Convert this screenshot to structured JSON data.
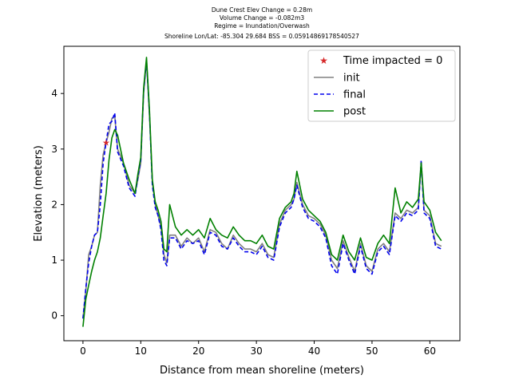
{
  "chart_data": {
    "type": "line",
    "title_lines": [
      "Dune Crest Elev Change = 0.28m",
      "Volume Change = -0.082m3",
      "Regime = Inundation/Overwash",
      "Shoreline Lon/Lat: -85.304 29.684   BSS = 0.05914869178540527"
    ],
    "xlabel": "Distance from mean shoreline (meters)",
    "ylabel": "Elevation (meters)",
    "xlim": [
      -3.3,
      65.2
    ],
    "ylim": [
      -0.45,
      4.85
    ],
    "xticks": [
      0,
      10,
      20,
      30,
      40,
      50,
      60
    ],
    "yticks": [
      0,
      1,
      2,
      3,
      4
    ],
    "legend_position": "top-right",
    "marker": {
      "name": "Time impacted = 0",
      "x": 4.0,
      "y": 3.12,
      "color": "#d62728"
    },
    "series": [
      {
        "name": "init",
        "color": "#808080",
        "style": "solid",
        "x": [
          0,
          0.5,
          1,
          1.5,
          2,
          2.5,
          3,
          3.5,
          4,
          4.5,
          5,
          5.5,
          6,
          7,
          8,
          9,
          9.5,
          10,
          10.5,
          11,
          11.5,
          12,
          12.5,
          13,
          13.5,
          14,
          14.5,
          15,
          16,
          17,
          18,
          19,
          20,
          21,
          22,
          23,
          24,
          25,
          26,
          27,
          28,
          29,
          30,
          31,
          32,
          33,
          34,
          35,
          36,
          36.5,
          37,
          38,
          39,
          40,
          41,
          42,
          43,
          44,
          45,
          46,
          47,
          48,
          49,
          50,
          51,
          52,
          53,
          54,
          55,
          56,
          57,
          58,
          58.5,
          59,
          60,
          61,
          62
        ],
        "y": [
          -0.05,
          0.45,
          1.1,
          1.25,
          1.45,
          1.5,
          2.35,
          2.9,
          3.12,
          3.3,
          3.55,
          3.6,
          3.0,
          2.75,
          2.35,
          2.2,
          2.45,
          2.75,
          4.0,
          4.6,
          3.6,
          2.4,
          2.0,
          1.8,
          1.6,
          1.1,
          0.95,
          1.45,
          1.45,
          1.25,
          1.4,
          1.3,
          1.4,
          1.15,
          1.55,
          1.5,
          1.3,
          1.2,
          1.45,
          1.3,
          1.2,
          1.2,
          1.15,
          1.3,
          1.1,
          1.05,
          1.65,
          1.9,
          2.0,
          2.1,
          2.4,
          2.0,
          1.8,
          1.75,
          1.65,
          1.45,
          1.0,
          0.85,
          1.35,
          1.05,
          0.8,
          1.3,
          0.9,
          0.8,
          1.2,
          1.3,
          1.15,
          1.85,
          1.75,
          1.9,
          1.85,
          1.95,
          2.75,
          1.9,
          1.8,
          1.3,
          1.25
        ]
      },
      {
        "name": "final",
        "color": "#0000ee",
        "style": "dashed",
        "x": [
          0,
          0.5,
          1,
          1.5,
          2,
          2.5,
          3,
          3.5,
          4,
          4.5,
          5,
          5.5,
          6,
          7,
          8,
          9,
          9.5,
          10,
          10.5,
          11,
          11.5,
          12,
          12.5,
          13,
          13.5,
          14,
          14.5,
          15,
          16,
          17,
          18,
          19,
          20,
          21,
          22,
          23,
          24,
          25,
          26,
          27,
          28,
          29,
          30,
          31,
          32,
          33,
          34,
          35,
          36,
          36.5,
          37,
          38,
          39,
          40,
          41,
          42,
          43,
          44,
          45,
          46,
          47,
          48,
          49,
          50,
          51,
          52,
          53,
          54,
          55,
          56,
          57,
          58,
          58.5,
          59,
          60,
          61,
          62
        ],
        "y": [
          -0.05,
          0.5,
          0.95,
          1.25,
          1.45,
          1.5,
          2.0,
          2.75,
          3.12,
          3.45,
          3.5,
          3.65,
          2.95,
          2.7,
          2.3,
          2.15,
          2.5,
          2.8,
          4.05,
          4.6,
          3.65,
          2.35,
          1.95,
          1.8,
          1.55,
          1.0,
          0.9,
          1.4,
          1.4,
          1.2,
          1.35,
          1.3,
          1.35,
          1.1,
          1.5,
          1.45,
          1.25,
          1.2,
          1.4,
          1.25,
          1.15,
          1.15,
          1.1,
          1.25,
          1.05,
          1.0,
          1.6,
          1.85,
          1.95,
          2.1,
          2.35,
          1.95,
          1.75,
          1.7,
          1.6,
          1.4,
          0.9,
          0.75,
          1.3,
          1.0,
          0.75,
          1.25,
          0.85,
          0.75,
          1.15,
          1.25,
          1.1,
          1.8,
          1.7,
          1.85,
          1.8,
          1.9,
          2.8,
          1.85,
          1.75,
          1.25,
          1.2
        ]
      },
      {
        "name": "post",
        "color": "#008000",
        "style": "solid",
        "x": [
          0,
          0.5,
          1,
          1.5,
          2,
          2.5,
          3,
          3.5,
          4,
          4.5,
          5,
          5.5,
          6,
          7,
          8,
          9,
          9.5,
          10,
          10.5,
          11,
          11.5,
          12,
          12.5,
          13,
          13.5,
          14,
          14.5,
          15,
          16,
          17,
          18,
          19,
          20,
          21,
          22,
          23,
          24,
          25,
          26,
          27,
          28,
          29,
          30,
          31,
          32,
          33,
          34,
          35,
          36,
          36.5,
          37,
          38,
          39,
          40,
          41,
          42,
          43,
          44,
          45,
          46,
          47,
          48,
          49,
          50,
          51,
          52,
          53,
          54,
          55,
          56,
          57,
          58,
          58.5,
          59,
          60,
          61,
          62
        ],
        "y": [
          -0.2,
          0.3,
          0.55,
          0.8,
          1.0,
          1.15,
          1.4,
          1.8,
          2.2,
          2.8,
          3.2,
          3.35,
          3.25,
          2.75,
          2.45,
          2.2,
          2.55,
          2.85,
          4.1,
          4.65,
          3.7,
          2.45,
          2.05,
          1.9,
          1.7,
          1.2,
          1.15,
          2.0,
          1.6,
          1.45,
          1.55,
          1.45,
          1.55,
          1.4,
          1.75,
          1.55,
          1.45,
          1.4,
          1.6,
          1.45,
          1.35,
          1.35,
          1.3,
          1.45,
          1.25,
          1.2,
          1.75,
          1.95,
          2.05,
          2.2,
          2.6,
          2.1,
          1.9,
          1.8,
          1.7,
          1.5,
          1.1,
          1.0,
          1.45,
          1.15,
          1.0,
          1.4,
          1.05,
          1.0,
          1.3,
          1.45,
          1.3,
          2.3,
          1.85,
          2.05,
          1.95,
          2.1,
          2.75,
          2.05,
          1.9,
          1.5,
          1.35
        ]
      }
    ]
  }
}
